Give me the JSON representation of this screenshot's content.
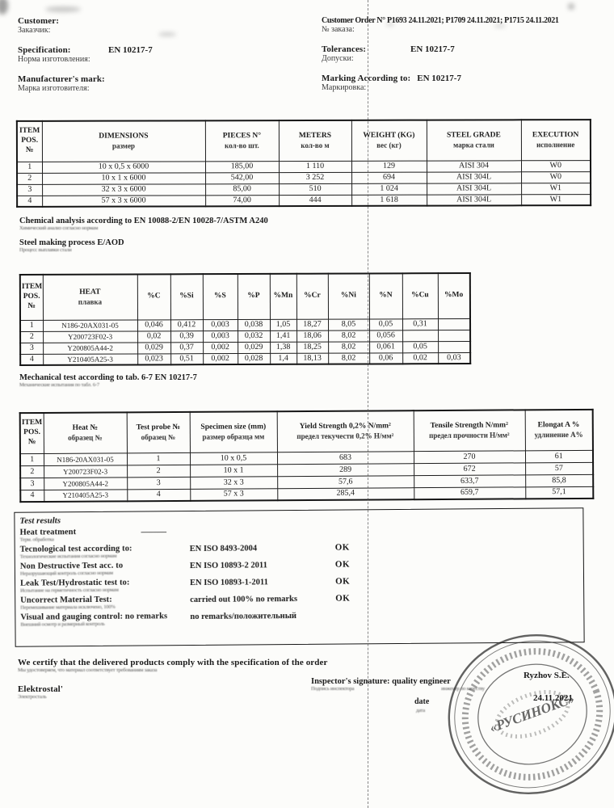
{
  "header": {
    "left": [
      {
        "label": "Customer:",
        "ru": "Заказчик:",
        "value": ""
      },
      {
        "label": "Specification:",
        "ru": "Норма изготовления:",
        "value": "EN 10217-7"
      },
      {
        "label": "Manufacturer's mark:",
        "ru": "Марка изготовителя:",
        "value": ""
      }
    ],
    "right": [
      {
        "label": "Customer Order N°",
        "ru": "№ заказа:",
        "value": "P1693 24.11.2021; P1709 24.11.2021; P1715 24.11.2021"
      },
      {
        "label": "Tolerances:",
        "ru": "Допуски:",
        "value": "EN 10217-7"
      },
      {
        "label": "Marking According to:",
        "ru": "Маркировка:",
        "value": "EN 10217-7"
      }
    ]
  },
  "table_dimensions": {
    "headers": [
      [
        "ITEM POS. №",
        ""
      ],
      [
        "DIMENSIONS",
        "размер"
      ],
      [
        "PIECES N°",
        "кол-во шт."
      ],
      [
        "METERS",
        "кол-во м"
      ],
      [
        "WEIGHT (KG)",
        "вес (кг)"
      ],
      [
        "STEEL GRADE",
        "марка стали"
      ],
      [
        "EXECUTION",
        "исполнение"
      ]
    ],
    "rows": [
      [
        "1",
        "10 x 0,5 x 6000",
        "185,00",
        "1 110",
        "129",
        "AISI 304",
        "W0"
      ],
      [
        "2",
        "10 x 1 x 6000",
        "542,00",
        "3 252",
        "694",
        "AISI 304L",
        "W0"
      ],
      [
        "3",
        "32 x 3 x 6000",
        "85,00",
        "510",
        "1 024",
        "AISI 304L",
        "W1"
      ],
      [
        "4",
        "57 x 3 x 6000",
        "74,00",
        "444",
        "1 618",
        "AISI 304L",
        "W1"
      ]
    ]
  },
  "notes": {
    "chem_en": "Chemical analysis according to  EN 10088-2/EN 10028-7/ASTM A240",
    "chem_ru": "Химический анализ согласно нормам",
    "process_en": "Steel making process  E/AOD",
    "process_ru": "Процесс выплавки стали",
    "mech_en": "Mechanical test according to tab. 6-7 EN 10217-7",
    "mech_ru": "Механические испытания по табл. 6-7"
  },
  "table_chemical": {
    "headers": [
      [
        "ITEM POS. №",
        ""
      ],
      [
        "HEAT",
        "плавка"
      ],
      [
        "%C",
        ""
      ],
      [
        "%Si",
        ""
      ],
      [
        "%S",
        ""
      ],
      [
        "%P",
        ""
      ],
      [
        "%Mn",
        ""
      ],
      [
        "%Cr",
        ""
      ],
      [
        "%Ni",
        ""
      ],
      [
        "%N",
        ""
      ],
      [
        "%Cu",
        ""
      ],
      [
        "%Mo",
        ""
      ]
    ],
    "rows": [
      [
        "1",
        "N186-20AX031-05",
        "0,046",
        "0,412",
        "0,003",
        "0,038",
        "1,05",
        "18,27",
        "8,05",
        "0,05",
        "0,31",
        ""
      ],
      [
        "2",
        "Y200723F02-3",
        "0,02",
        "0,39",
        "0,003",
        "0,032",
        "1,41",
        "18,06",
        "8,02",
        "0,056",
        "",
        ""
      ],
      [
        "3",
        "Y200805A44-2",
        "0,029",
        "0,37",
        "0,002",
        "0,029",
        "1,38",
        "18,25",
        "8,02",
        "0,061",
        "0,05",
        ""
      ],
      [
        "4",
        "Y210405A25-3",
        "0,023",
        "0,51",
        "0,002",
        "0,028",
        "1,4",
        "18,13",
        "8,02",
        "0,06",
        "0,02",
        "0,03"
      ]
    ]
  },
  "table_mechanical": {
    "headers": [
      [
        "ITEM POS. №",
        ""
      ],
      [
        "Heat №",
        "образец №"
      ],
      [
        "Test probe №",
        "образец №"
      ],
      [
        "Specimen size (mm)",
        "размер образца мм"
      ],
      [
        "Yield Strength 0,2%  N/mm²",
        "предел текучести 0,2% Н/мм²"
      ],
      [
        "Tensile Strength N/mm²",
        "предел прочности Н/мм²"
      ],
      [
        "Elongat A %",
        "удлинение А%"
      ]
    ],
    "rows": [
      [
        "1",
        "N186-20AX031-05",
        "1",
        "10 x 0,5",
        "683",
        "270",
        "61"
      ],
      [
        "2",
        "Y200723F02-3",
        "2",
        "10 x 1",
        "289",
        "672",
        "57"
      ],
      [
        "3",
        "Y200805A44-2",
        "3",
        "32 x 3",
        "57,6",
        "633,7",
        "85,8"
      ],
      [
        "4",
        "Y210405A25-3",
        "4",
        "57 x 3",
        "285,4",
        "659,7",
        "57,1"
      ]
    ]
  },
  "test_results": {
    "title": "Test results",
    "rows": [
      {
        "label": "Heat treatment",
        "ru": "Терм. обработка",
        "value": "———",
        "status": ""
      },
      {
        "label": "Tecnological test according to:",
        "ru": "Технологические испытания согласно нормам",
        "value": "EN ISO 8493-2004",
        "status": "OK"
      },
      {
        "label": "Non Destructive Test acc. to",
        "ru": "Неразрушающий контроль согласно нормам",
        "value": "EN ISO 10893-2 2011",
        "status": "OK"
      },
      {
        "label": "Leak Test/Hydrostatic test to:",
        "ru": "Испытание на герметичность согласно нормам",
        "value": "EN ISO 10893-1-2011",
        "status": "OK"
      },
      {
        "label": "Uncorrect Material Test:",
        "ru": "Перемешивание материала исключено, 100%",
        "value": "carried out 100% no remarks",
        "status": "OK"
      },
      {
        "label": "Visual and gauging control: no remarks",
        "ru": "Внешний осмотр и размерный контроль",
        "value": "no remarks/положительный",
        "status": ""
      }
    ]
  },
  "footer": {
    "certify_en": "We certify that the delivered products comply with the specification of the order",
    "certify_ru": "Мы удостоверяем, что материал соответствует требованиям заказа",
    "mill_en": "Elektrostal'",
    "mill_ru": "Электросталь",
    "inspector_label": "Inspector's signature:",
    "inspector_ru": "Подпись инспектора",
    "role": "quality engineer",
    "role_ru": "инженер по качеству",
    "date_label": "date",
    "date_ru": "дата",
    "signer_name": "Ryzhov S.E.",
    "sign_date": "24.11.2021"
  },
  "stamp": {
    "center_text": "«РУСИНОКС»"
  }
}
